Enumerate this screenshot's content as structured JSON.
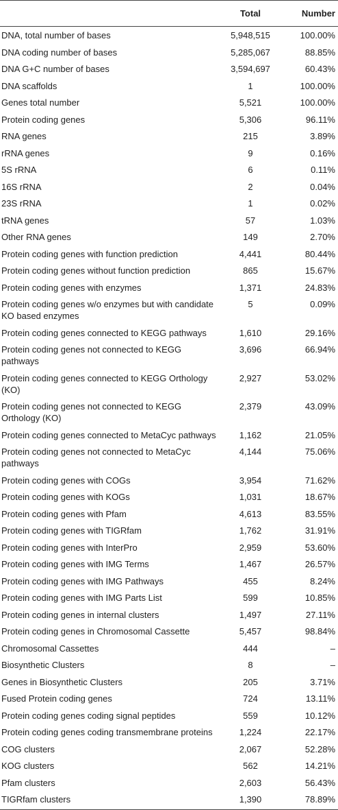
{
  "headers": [
    "",
    "Total",
    "Number"
  ],
  "rows": [
    {
      "name": "DNA, total number of bases",
      "total": "5,948,515",
      "number": "100.00%"
    },
    {
      "name": "DNA coding number of bases",
      "total": "5,285,067",
      "number": "88.85%"
    },
    {
      "name": "DNA G+C number of bases",
      "total": "3,594,697",
      "number": "60.43%"
    },
    {
      "name": "DNA scaffolds",
      "total": "1",
      "number": "100.00%"
    },
    {
      "name": "Genes total number",
      "total": "5,521",
      "number": "100.00%"
    },
    {
      "name": "Protein coding genes",
      "total": "5,306",
      "number": "96.11%"
    },
    {
      "name": "RNA genes",
      "total": "215",
      "number": "3.89%"
    },
    {
      "name": "rRNA genes",
      "total": "9",
      "number": "0.16%"
    },
    {
      "name": "5S rRNA",
      "total": "6",
      "number": "0.11%"
    },
    {
      "name": "16S rRNA",
      "total": "2",
      "number": "0.04%"
    },
    {
      "name": "23S rRNA",
      "total": "1",
      "number": "0.02%"
    },
    {
      "name": "tRNA genes",
      "total": "57",
      "number": "1.03%"
    },
    {
      "name": "Other RNA genes",
      "total": "149",
      "number": "2.70%"
    },
    {
      "name": "Protein coding genes with function prediction",
      "total": "4,441",
      "number": "80.44%"
    },
    {
      "name": "Protein coding genes without function prediction",
      "total": "865",
      "number": "15.67%"
    },
    {
      "name": "Protein coding genes with enzymes",
      "total": "1,371",
      "number": "24.83%"
    },
    {
      "name": "Protein coding genes w/o enzymes but with candidate KO based enzymes",
      "total": "5",
      "number": "0.09%",
      "two_line": true
    },
    {
      "name": "Protein coding genes connected to KEGG pathways",
      "total": "1,610",
      "number": "29.16%"
    },
    {
      "name": "Protein coding genes not connected to KEGG pathways",
      "total": "3,696",
      "number": "66.94%",
      "two_line": true
    },
    {
      "name": "Protein coding genes connected to KEGG Orthology (KO)",
      "total": "2,927",
      "number": "53.02%",
      "two_line": true
    },
    {
      "name": "Protein coding genes not connected to KEGG Orthology (KO)",
      "total": "2,379",
      "number": "43.09%",
      "two_line": true
    },
    {
      "name": "Protein coding genes connected to MetaCyc pathways",
      "total": "1,162",
      "number": "21.05%"
    },
    {
      "name": "Protein coding genes not connected to MetaCyc pathways",
      "total": "4,144",
      "number": "75.06%",
      "two_line": true
    },
    {
      "name": "Protein coding genes with COGs",
      "total": "3,954",
      "number": "71.62%"
    },
    {
      "name": "Protein coding genes with KOGs",
      "total": "1,031",
      "number": "18.67%"
    },
    {
      "name": "Protein coding genes with Pfam",
      "total": "4,613",
      "number": "83.55%"
    },
    {
      "name": "Protein coding genes with TIGRfam",
      "total": "1,762",
      "number": "31.91%"
    },
    {
      "name": "Protein coding genes with InterPro",
      "total": "2,959",
      "number": "53.60%"
    },
    {
      "name": "Protein coding genes with IMG Terms",
      "total": "1,467",
      "number": "26.57%"
    },
    {
      "name": "Protein coding genes with IMG Pathways",
      "total": "455",
      "number": "8.24%"
    },
    {
      "name": "Protein coding genes with IMG Parts List",
      "total": "599",
      "number": "10.85%"
    },
    {
      "name": "Protein coding genes in internal clusters",
      "total": "1,497",
      "number": "27.11%"
    },
    {
      "name": "Protein coding genes in Chromosomal Cassette",
      "total": "5,457",
      "number": "98.84%"
    },
    {
      "name": "Chromosomal Cassettes",
      "total": "444",
      "number": "–"
    },
    {
      "name": "Biosynthetic Clusters",
      "total": "8",
      "number": "–"
    },
    {
      "name": "Genes in Biosynthetic Clusters",
      "total": "205",
      "number": "3.71%"
    },
    {
      "name": "Fused Protein coding genes",
      "total": "724",
      "number": "13.11%"
    },
    {
      "name": "Protein coding genes coding signal peptides",
      "total": "559",
      "number": "10.12%"
    },
    {
      "name": "Protein coding genes coding transmembrane proteins",
      "total": "1,224",
      "number": "22.17%"
    },
    {
      "name": "COG clusters",
      "total": "2,067",
      "number": "52.28%"
    },
    {
      "name": "KOG clusters",
      "total": "562",
      "number": "14.21%"
    },
    {
      "name": "Pfam clusters",
      "total": "2,603",
      "number": "56.43%"
    },
    {
      "name": "TIGRfam clusters",
      "total": "1,390",
      "number": "78.89%"
    }
  ]
}
